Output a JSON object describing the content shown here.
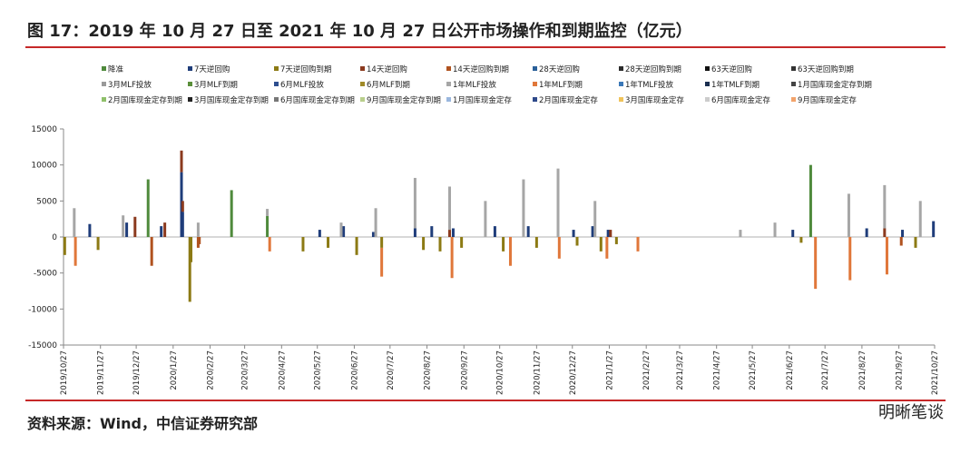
{
  "chart_data": {
    "type": "bar",
    "title": "图 17：2019 年 10 月 27 日至 2021 年 10 月 27 日公开市场操作和到期监控（亿元）",
    "source": "资料来源：Wind，中信证券研究部",
    "watermark": "明晰笔谈",
    "stacked": true,
    "xlim": [
      "2019/10/27",
      "2021/10/27"
    ],
    "xticks": [
      "2019/10/27",
      "2019/11/27",
      "2019/12/27",
      "2020/1/27",
      "2020/2/27",
      "2020/3/27",
      "2020/4/27",
      "2020/5/27",
      "2020/6/27",
      "2020/7/27",
      "2020/8/27",
      "2020/9/27",
      "2020/10/27",
      "2020/11/27",
      "2020/12/27",
      "2021/1/27",
      "2021/2/27",
      "2021/3/27",
      "2021/4/27",
      "2021/5/27",
      "2021/6/27",
      "2021/7/27",
      "2021/8/27",
      "2021/9/27",
      "2021/10/27"
    ],
    "ylim": [
      -15000,
      15000
    ],
    "yticks": [
      -15000,
      -10000,
      -5000,
      0,
      5000,
      10000,
      15000
    ],
    "series": [
      {
        "name": "降准",
        "color": "#4f8a3c",
        "x": [
          "2020/1/6",
          "2020/3/16",
          "2020/4/15",
          "2021/7/15"
        ],
        "values": [
          8000,
          6500,
          2900,
          10000
        ]
      },
      {
        "name": "7天逆回购",
        "color": "#1f3d7a",
        "x": [
          "2019/11/18",
          "2019/12/19",
          "2020/1/17",
          "2020/2/3",
          "2020/2/4",
          "2020/5/29",
          "2020/6/18",
          "2020/7/13",
          "2020/8/17",
          "2020/8/31",
          "2020/9/18",
          "2020/10/23",
          "2020/11/20",
          "2020/12/28",
          "2021/1/13",
          "2021/1/26",
          "2021/6/30",
          "2021/8/31",
          "2021/9/30",
          "2021/10/26"
        ],
        "values": [
          1800,
          2000,
          1500,
          9000,
          3500,
          1000,
          1500,
          700,
          1200,
          1500,
          1200,
          1500,
          1500,
          1000,
          1500,
          1000,
          1000,
          1200,
          1000,
          2200
        ]
      },
      {
        "name": "7天逆回购到期",
        "color": "#8c7a14",
        "x": [
          "2019/10/28",
          "2019/11/25",
          "2020/2/10",
          "2020/2/11",
          "2020/5/15",
          "2020/6/5",
          "2020/6/29",
          "2020/7/20",
          "2020/8/24",
          "2020/9/7",
          "2020/9/25",
          "2020/10/30",
          "2020/11/27",
          "2020/12/31",
          "2021/1/20",
          "2021/2/2",
          "2021/7/7",
          "2021/10/11"
        ],
        "values": [
          -2500,
          -1800,
          -9000,
          -3500,
          -2000,
          -1500,
          -2500,
          -1500,
          -1800,
          -2000,
          -1500,
          -2000,
          -1500,
          -1200,
          -2000,
          -1000,
          -800,
          -1500
        ]
      },
      {
        "name": "14天逆回购",
        "color": "#8b3a1e",
        "x": [
          "2019/12/26",
          "2020/1/20",
          "2020/2/3",
          "2020/2/4",
          "2020/9/15",
          "2021/1/28",
          "2021/9/15"
        ],
        "values": [
          2800,
          2000,
          3000,
          1500,
          1000,
          1000,
          1200
        ]
      },
      {
        "name": "14天逆回购到期",
        "color": "#b0521f",
        "x": [
          "2020/1/9",
          "2020/2/17",
          "2020/2/18",
          "2021/9/29"
        ],
        "values": [
          -4000,
          -1500,
          -1000,
          -1200
        ]
      },
      {
        "name": "28天逆回购",
        "color": "#2a6099",
        "x": [],
        "values": []
      },
      {
        "name": "28天逆回购到期",
        "color": "#2b2b2b",
        "x": [],
        "values": []
      },
      {
        "name": "63天逆回购",
        "color": "#111111",
        "x": [],
        "values": []
      },
      {
        "name": "63天逆回购到期",
        "color": "#333333",
        "x": [],
        "values": []
      },
      {
        "name": "3月MLF投放",
        "color": "#999999",
        "x": [],
        "values": []
      },
      {
        "name": "3月MLF到期",
        "color": "#5a8f3a",
        "x": [],
        "values": []
      },
      {
        "name": "6月MLF投放",
        "color": "#2e4f8f",
        "x": [],
        "values": []
      },
      {
        "name": "6月MLF到期",
        "color": "#a08a28",
        "x": [],
        "values": []
      },
      {
        "name": "1年MLF投放",
        "color": "#a6a6a6",
        "x": [
          "2019/11/5",
          "2019/12/16",
          "2020/2/17",
          "2020/4/15",
          "2020/6/16",
          "2020/7/15",
          "2020/8/17",
          "2020/9/15",
          "2020/10/15",
          "2020/11/16",
          "2020/12/15",
          "2021/1/15",
          "2021/5/17",
          "2021/6/15",
          "2021/8/16",
          "2021/9/15",
          "2021/10/15"
        ],
        "values": [
          4000,
          3000,
          2000,
          1000,
          2000,
          4000,
          7000,
          6000,
          5000,
          8000,
          9500,
          5000,
          1000,
          2000,
          6000,
          6000,
          5000
        ]
      },
      {
        "name": "1年MLF到期",
        "color": "#e0773a",
        "x": [
          "2019/11/6",
          "2020/4/17",
          "2020/7/20",
          "2020/9/17",
          "2020/11/5",
          "2020/12/16",
          "2021/1/25",
          "2021/2/20",
          "2021/7/19",
          "2021/8/17",
          "2021/9/17"
        ],
        "values": [
          -4000,
          -2000,
          -4000,
          -5700,
          -4000,
          -3000,
          -3000,
          -2000,
          -7200,
          -6000,
          -5200
        ]
      },
      {
        "name": "1年TMLF投放",
        "color": "#3b78b8",
        "x": [],
        "values": []
      },
      {
        "name": "1年TMLF到期",
        "color": "#1b2f50",
        "x": [],
        "values": []
      },
      {
        "name": "1月国库现金定存到期",
        "color": "#444444",
        "x": [],
        "values": []
      },
      {
        "name": "2月国库现金定存到期",
        "color": "#8fc06a",
        "x": [],
        "values": []
      },
      {
        "name": "3月国库现金定存到期",
        "color": "#222222",
        "x": [],
        "values": []
      },
      {
        "name": "6月国库现金定存到期",
        "color": "#777777",
        "x": [],
        "values": []
      },
      {
        "name": "9月国库现金定存到期",
        "color": "#b9cf8c",
        "x": [],
        "values": []
      },
      {
        "name": "1月国库现金定存",
        "color": "#9ab7de",
        "x": [],
        "values": []
      },
      {
        "name": "2月国库现金定存",
        "color": "#2e4a8a",
        "x": [],
        "values": []
      },
      {
        "name": "3月国库现金定存",
        "color": "#f0c35a",
        "x": [],
        "values": []
      },
      {
        "name": "6月国库现金定存",
        "color": "#cccccc",
        "x": [],
        "values": []
      },
      {
        "name": "9月国库现金定存",
        "color": "#f2a36b",
        "x": [],
        "values": []
      }
    ]
  }
}
